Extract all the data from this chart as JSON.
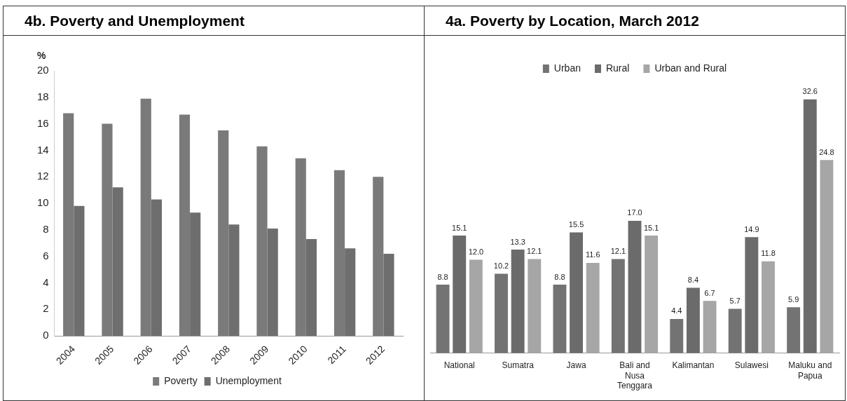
{
  "chart_data": [
    {
      "type": "bar",
      "title": "4b. Poverty and Unemployment",
      "ylabel": "%",
      "categories": [
        "2004",
        "2005",
        "2006",
        "2007",
        "2008",
        "2009",
        "2010",
        "2011",
        "2012"
      ],
      "series": [
        {
          "name": "Poverty",
          "color": "#7a7a7a",
          "values": [
            16.8,
            16.0,
            17.9,
            16.7,
            15.5,
            14.3,
            13.4,
            12.5,
            12.0
          ]
        },
        {
          "name": "Unemployment",
          "color": "#6e6e6e",
          "values": [
            9.8,
            11.2,
            10.3,
            9.3,
            8.4,
            8.1,
            7.3,
            6.6,
            6.2
          ]
        }
      ],
      "ylim": [
        0,
        20
      ],
      "yticks": [
        0,
        2,
        4,
        6,
        8,
        10,
        12,
        14,
        16,
        18,
        20
      ],
      "grid": false,
      "legend": "bottom"
    },
    {
      "type": "bar",
      "title": "4a. Poverty by Location, March 2012",
      "categories": [
        "National",
        "Sumatra",
        "Jawa",
        "Bali and Nusa Tenggara",
        "Kalimantan",
        "Sulawesi",
        "Maluku and Papua"
      ],
      "series": [
        {
          "name": "Urban",
          "color": "#737373",
          "values": [
            8.8,
            10.2,
            8.8,
            12.1,
            4.4,
            5.7,
            5.9
          ],
          "value_labels": [
            "8.8",
            "10.2",
            "8.8",
            "12.1",
            "4.4",
            "5.7",
            "5.9"
          ]
        },
        {
          "name": "Rural",
          "color": "#6b6b6b",
          "values": [
            15.1,
            13.3,
            15.5,
            17.0,
            8.4,
            14.9,
            32.6
          ],
          "value_labels": [
            "15.1",
            "13.3",
            "15.5",
            "17.0",
            "8.4",
            "14.9",
            "32.6"
          ]
        },
        {
          "name": "Urban and Rural",
          "color": "#a6a6a6",
          "values": [
            12.0,
            12.1,
            11.6,
            15.1,
            6.7,
            11.8,
            24.8
          ],
          "value_labels": [
            "12.0",
            "12.1",
            "11.6",
            "15.1",
            "6.7",
            "11.8",
            "24.8"
          ]
        }
      ],
      "tick_labels": "x",
      "grid": false,
      "legend": "top"
    }
  ]
}
